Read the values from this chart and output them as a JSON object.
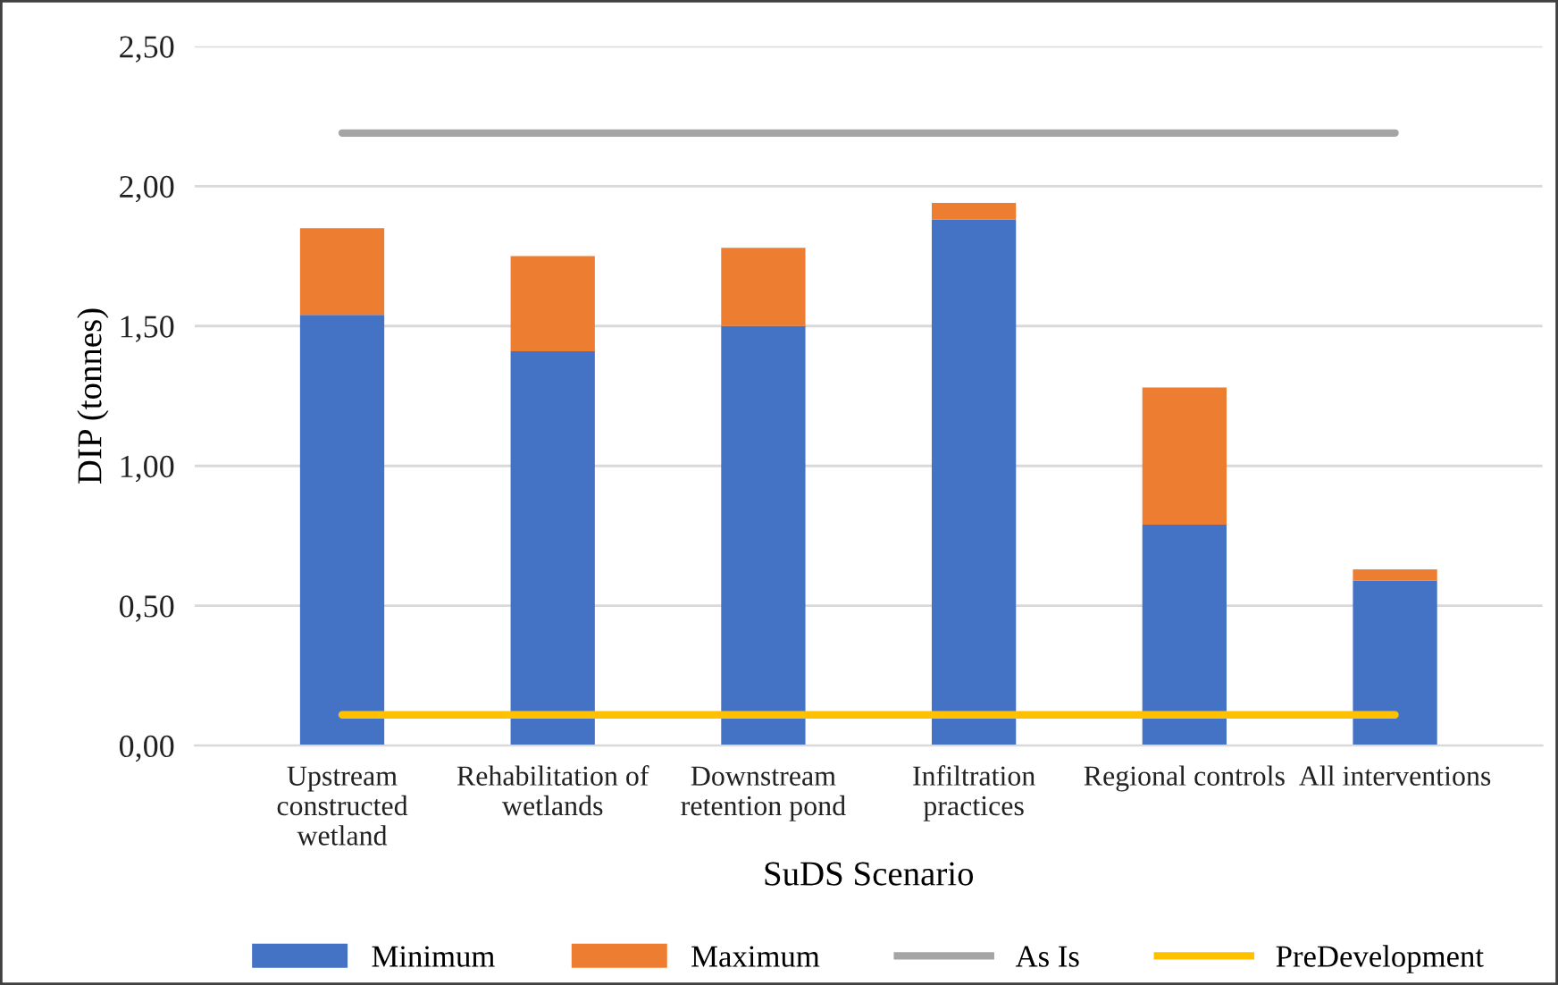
{
  "chart_data": {
    "type": "bar",
    "stacked": true,
    "xlabel": "SuDS Scenario",
    "ylabel": "DIP (tonnes)",
    "categories": [
      "Upstream\nconstructed\nwetland",
      "Rehabilitation of\nwetlands",
      "Downstream\nretention pond",
      "Infiltration\npractices",
      "Regional controls",
      "All interventions"
    ],
    "series": [
      {
        "name": "Minimum",
        "color": "#4472c4",
        "values": [
          1.54,
          1.41,
          1.5,
          1.88,
          0.79,
          0.59
        ]
      },
      {
        "name": "Maximum",
        "color": "#ed7d31",
        "values": [
          0.31,
          0.34,
          0.28,
          0.06,
          0.49,
          0.04
        ]
      },
      {
        "name": "As Is",
        "type": "line",
        "color": "#a5a5a5",
        "values": [
          2.19,
          2.19,
          2.19,
          2.19,
          2.19,
          2.19
        ]
      },
      {
        "name": "PreDevelopment",
        "type": "line",
        "color": "#ffc000",
        "values": [
          0.11,
          0.11,
          0.11,
          0.11,
          0.11,
          0.11
        ]
      }
    ],
    "ylim": [
      0,
      2.5
    ],
    "yticks": [
      {
        "value": 0,
        "label": "0,00"
      },
      {
        "value": 0.5,
        "label": "0,50"
      },
      {
        "value": 1,
        "label": "1,00"
      },
      {
        "value": 1.5,
        "label": "1,50"
      },
      {
        "value": 2,
        "label": "2,00"
      },
      {
        "value": 2.5,
        "label": "2,50"
      }
    ],
    "grid": "y",
    "legend": "bottom"
  }
}
